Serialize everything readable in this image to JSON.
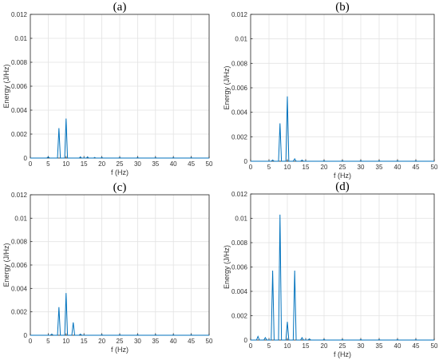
{
  "chart_data": [
    {
      "type": "line",
      "title": "(a)",
      "xlabel": "f (Hz)",
      "ylabel": "Energy (J/Hz)",
      "xlim": [
        0,
        50
      ],
      "ylim": [
        0,
        0.012
      ],
      "xticks": [
        0,
        5,
        10,
        15,
        20,
        25,
        30,
        35,
        40,
        45,
        50
      ],
      "yticks": [
        0,
        0.002,
        0.004,
        0.006,
        0.008,
        0.01,
        0.012
      ],
      "ytick_labels": [
        "0",
        "0.002",
        "0.004",
        "0.006",
        "0.008",
        "0.01",
        "0.012"
      ],
      "grid": true,
      "series": [
        {
          "color": "#0072bd",
          "x": [
            0,
            4.6,
            5,
            5.4,
            7.6,
            8,
            8.4,
            9.6,
            10,
            10.4,
            13.7,
            14,
            14.3,
            15.7,
            16,
            16.3,
            17.7,
            18,
            18.3,
            19.7,
            20,
            20.3,
            24.7,
            25,
            25.3,
            29.7,
            30,
            30.3,
            34.7,
            35,
            35.3,
            39.7,
            40,
            40.3,
            44.7,
            45,
            45.3,
            50
          ],
          "y": [
            0,
            0,
            0.0001,
            0,
            0,
            0.0025,
            0,
            0,
            0.0033,
            0,
            0,
            0.0001,
            0,
            0,
            0.0001,
            0,
            0,
            5e-05,
            0,
            0,
            5e-05,
            0,
            0,
            4e-05,
            0,
            0,
            4e-05,
            0,
            0,
            3e-05,
            0,
            0,
            3e-05,
            0,
            0,
            3e-05,
            0,
            0
          ]
        }
      ]
    },
    {
      "type": "line",
      "title": "(b)",
      "xlabel": "f (Hz)",
      "ylabel": "Energy (J/Hz)",
      "xlim": [
        0,
        50
      ],
      "ylim": [
        0,
        0.012
      ],
      "xticks": [
        0,
        5,
        10,
        15,
        20,
        25,
        30,
        35,
        40,
        45,
        50
      ],
      "yticks": [
        0,
        0.002,
        0.004,
        0.006,
        0.008,
        0.01,
        0.012
      ],
      "ytick_labels": [
        "0",
        "0.002",
        "0.004",
        "0.006",
        "0.008",
        "0.01",
        "0.012"
      ],
      "grid": true,
      "series": [
        {
          "color": "#0072bd",
          "x": [
            0,
            5.6,
            6,
            6.4,
            7.6,
            8,
            8.4,
            9.6,
            10,
            10.4,
            11.6,
            12,
            12.4,
            13.6,
            14,
            14.4,
            19.7,
            20,
            20.3,
            24.7,
            25,
            25.3,
            29.7,
            30,
            30.3,
            34.7,
            35,
            35.3,
            39.7,
            40,
            40.3,
            44.7,
            45,
            45.3,
            50
          ],
          "y": [
            0,
            0,
            0.0001,
            0,
            0,
            0.0031,
            0,
            0,
            0.0053,
            0,
            0,
            0.0002,
            0,
            0,
            0.0001,
            0,
            0,
            4e-05,
            0,
            0,
            4e-05,
            0,
            0,
            4e-05,
            0,
            0,
            3e-05,
            0,
            0,
            3e-05,
            0,
            0,
            3e-05,
            0,
            0
          ]
        }
      ]
    },
    {
      "type": "line",
      "title": "(c)",
      "xlabel": "f (Hz)",
      "ylabel": "Energy (J/Hz)",
      "xlim": [
        0,
        50
      ],
      "ylim": [
        0,
        0.012
      ],
      "xticks": [
        0,
        5,
        10,
        15,
        20,
        25,
        30,
        35,
        40,
        45,
        50
      ],
      "yticks": [
        0,
        0.002,
        0.004,
        0.006,
        0.008,
        0.01,
        0.012
      ],
      "ytick_labels": [
        "0",
        "0.002",
        "0.004",
        "0.006",
        "0.008",
        "0.01",
        "0.012"
      ],
      "grid": true,
      "series": [
        {
          "color": "#0072bd",
          "x": [
            0,
            5.6,
            6,
            6.4,
            7.6,
            8,
            8.4,
            9.6,
            10,
            10.4,
            11.6,
            12,
            12.4,
            13.6,
            14,
            14.4,
            19.7,
            20,
            20.3,
            24.7,
            25,
            25.3,
            29.7,
            30,
            30.3,
            34.7,
            35,
            35.3,
            39.7,
            40,
            40.3,
            44.7,
            45,
            45.3,
            50
          ],
          "y": [
            0,
            0,
            0.0001,
            0,
            0,
            0.0024,
            0,
            0,
            0.0036,
            0,
            0,
            0.0011,
            0,
            0,
            0.0001,
            0,
            0,
            4e-05,
            0,
            0,
            4e-05,
            0,
            0,
            4e-05,
            0,
            0,
            3e-05,
            0,
            0,
            3e-05,
            0,
            0,
            3e-05,
            0,
            0
          ]
        }
      ]
    },
    {
      "type": "line",
      "title": "(d)",
      "xlabel": "f (Hz)",
      "ylabel": "Energy (J/Hz)",
      "xlim": [
        0,
        50
      ],
      "ylim": [
        0,
        0.012
      ],
      "xticks": [
        0,
        5,
        10,
        15,
        20,
        25,
        30,
        35,
        40,
        45,
        50
      ],
      "yticks": [
        0,
        0.002,
        0.004,
        0.006,
        0.008,
        0.01,
        0.012
      ],
      "ytick_labels": [
        "0",
        "0.002",
        "0.004",
        "0.006",
        "0.008",
        "0.01",
        "0.012"
      ],
      "grid": true,
      "series": [
        {
          "color": "#0072bd",
          "x": [
            0,
            1.6,
            2,
            2.4,
            3.6,
            4,
            4.4,
            5.6,
            6,
            6.4,
            7.6,
            8,
            8.4,
            9.6,
            10,
            10.4,
            11.6,
            12,
            12.4,
            13.6,
            14,
            14.4,
            15.6,
            16,
            16.4,
            19.7,
            20,
            20.3,
            24.7,
            25,
            25.3,
            29.7,
            30,
            30.3,
            34.7,
            35,
            35.3,
            39.7,
            40,
            40.3,
            44.7,
            45,
            45.3,
            50
          ],
          "y": [
            0,
            0,
            0.0003,
            0,
            0,
            0.0002,
            0,
            0,
            0.0057,
            0,
            0,
            0.0103,
            0,
            0,
            0.0015,
            0,
            0,
            0.0057,
            0,
            0,
            0.0002,
            0,
            0,
            0.0001,
            0,
            0,
            5e-05,
            0,
            0,
            4e-05,
            0,
            0,
            4e-05,
            0,
            0,
            3e-05,
            0,
            0,
            3e-05,
            0,
            0,
            3e-05,
            0,
            0
          ]
        }
      ]
    }
  ]
}
